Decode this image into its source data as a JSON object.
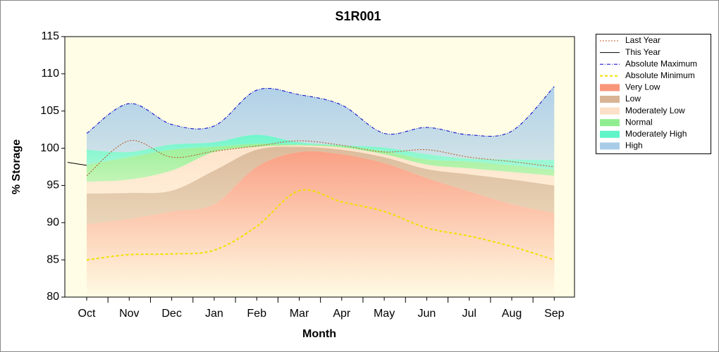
{
  "chart_data": {
    "type": "line",
    "title": "S1R001",
    "x_label": "Month",
    "y_label": "% Storage",
    "categories": [
      "Oct",
      "Nov",
      "Dec",
      "Jan",
      "Feb",
      "Mar",
      "Apr",
      "May",
      "Jun",
      "Jul",
      "Aug",
      "Sep"
    ],
    "ylim": [
      80,
      115
    ],
    "yticks": [
      80,
      85,
      90,
      95,
      100,
      105,
      110,
      115
    ],
    "series": [
      {
        "name": "Last Year",
        "color": "#b8541e",
        "style": "dotted",
        "values": [
          96.3,
          101,
          98.8,
          99.6,
          100.3,
          101,
          100.4,
          99.5,
          99.8,
          98.8,
          98.2,
          97.5
        ]
      },
      {
        "name": "This Year",
        "color": "#000000",
        "style": "solid",
        "x": [
          -0.45,
          0
        ],
        "values": [
          98.1,
          97.7
        ]
      },
      {
        "name": "Absolute Maximum",
        "color": "#0000cc",
        "style": "dashdot",
        "values": [
          102,
          106,
          103.2,
          103,
          107.8,
          107.2,
          105.8,
          102,
          102.8,
          101.8,
          102.3,
          108.3
        ]
      },
      {
        "name": "Absolute Minimum",
        "color": "#f0e000",
        "style": "dashed",
        "values": [
          85,
          85.7,
          85.8,
          86.3,
          89.5,
          94.3,
          92.8,
          91.5,
          89.3,
          88.2,
          86.8,
          85
        ]
      },
      {
        "name": "Very Low",
        "color": "#f9967a",
        "style": "area",
        "values": [
          89.8,
          90.5,
          91.5,
          92.5,
          97.5,
          99.5,
          99.2,
          98,
          96,
          94.2,
          92.5,
          91.3
        ]
      },
      {
        "name": "Low",
        "color": "#d8b494",
        "style": "area",
        "values": [
          93.9,
          94,
          94.3,
          97,
          99.8,
          100.2,
          99.8,
          98.8,
          97.2,
          96.5,
          95.8,
          95
        ]
      },
      {
        "name": "Moderately Low",
        "color": "#fde0c8",
        "style": "area",
        "values": [
          95.5,
          95.8,
          97,
          99.5,
          100.2,
          100.4,
          100.1,
          99.2,
          97.8,
          97.3,
          96.8,
          96.3
        ]
      },
      {
        "name": "Normal",
        "color": "#90ee90",
        "style": "area",
        "values": [
          97.8,
          98.8,
          99.8,
          100.2,
          100.6,
          100.5,
          100.3,
          99.6,
          98.5,
          98.2,
          97.7,
          97.1
        ]
      },
      {
        "name": "Moderately High",
        "color": "#5ff5c8",
        "style": "area",
        "values": [
          99.8,
          99.5,
          100.5,
          100.8,
          101.8,
          100.8,
          100.4,
          100.1,
          99.2,
          98.6,
          98.5,
          98.4
        ]
      },
      {
        "name": "High",
        "color": "#a8cce8",
        "style": "area",
        "values": [
          102,
          106,
          103.2,
          103,
          107.8,
          107.2,
          105.8,
          102,
          102.8,
          101.8,
          102.3,
          108.3
        ]
      }
    ]
  }
}
